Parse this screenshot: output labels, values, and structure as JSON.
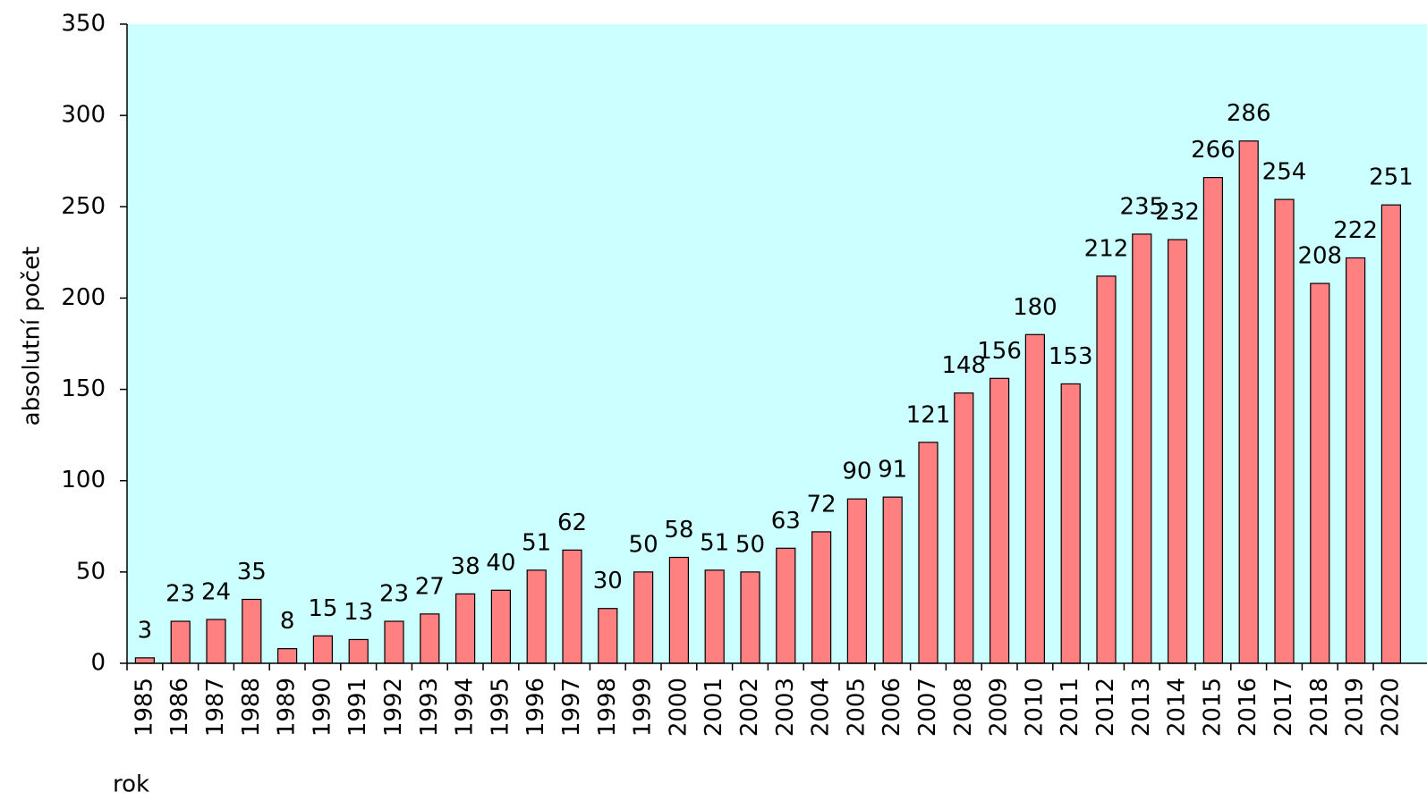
{
  "chart_data": {
    "type": "bar",
    "y_label": "absolutní počet",
    "x_label": "rok",
    "categories": [
      "1985",
      "1986",
      "1987",
      "1988",
      "1989",
      "1990",
      "1991",
      "1992",
      "1993",
      "1994",
      "1995",
      "1996",
      "1997",
      "1998",
      "1999",
      "2000",
      "2001",
      "2002",
      "2003",
      "2004",
      "2005",
      "2006",
      "2007",
      "2008",
      "2009",
      "2010",
      "2011",
      "2012",
      "2013",
      "2014",
      "2015",
      "2016",
      "2017",
      "2018",
      "2019",
      "2020"
    ],
    "values": [
      3,
      23,
      24,
      35,
      8,
      15,
      13,
      23,
      27,
      38,
      40,
      51,
      62,
      30,
      50,
      58,
      51,
      50,
      63,
      72,
      90,
      91,
      121,
      148,
      156,
      180,
      153,
      212,
      235,
      232,
      266,
      286,
      254,
      208,
      222,
      251
    ],
    "color": "#ff8080",
    "background": "#ccffff",
    "ylim": [
      0,
      350
    ],
    "yticks": [
      0,
      50,
      100,
      150,
      200,
      250,
      300,
      350
    ],
    "grid": false
  }
}
